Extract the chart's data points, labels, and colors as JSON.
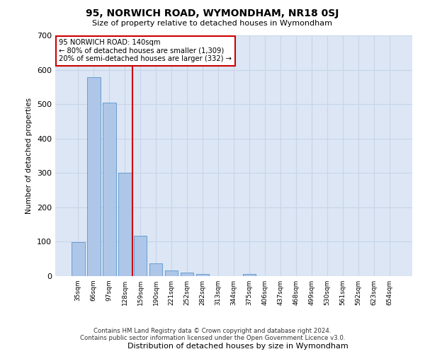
{
  "title": "95, NORWICH ROAD, WYMONDHAM, NR18 0SJ",
  "subtitle": "Size of property relative to detached houses in Wymondham",
  "xlabel": "Distribution of detached houses by size in Wymondham",
  "ylabel": "Number of detached properties",
  "footer_line1": "Contains HM Land Registry data © Crown copyright and database right 2024.",
  "footer_line2": "Contains public sector information licensed under the Open Government Licence v3.0.",
  "categories": [
    "35sqm",
    "66sqm",
    "97sqm",
    "128sqm",
    "159sqm",
    "190sqm",
    "221sqm",
    "252sqm",
    "282sqm",
    "313sqm",
    "344sqm",
    "375sqm",
    "406sqm",
    "437sqm",
    "468sqm",
    "499sqm",
    "530sqm",
    "561sqm",
    "592sqm",
    "623sqm",
    "654sqm"
  ],
  "values": [
    98,
    578,
    505,
    300,
    118,
    38,
    16,
    10,
    7,
    0,
    0,
    6,
    0,
    0,
    0,
    0,
    0,
    0,
    0,
    0,
    0
  ],
  "bar_color": "#aec6e8",
  "bar_edge_color": "#5a96cc",
  "bar_width": 0.85,
  "vline_x": 3.5,
  "vline_color": "#cc0000",
  "annotation_line1": "95 NORWICH ROAD: 140sqm",
  "annotation_line2": "← 80% of detached houses are smaller (1,309)",
  "annotation_line3": "20% of semi-detached houses are larger (332) →",
  "annotation_box_color": "#cc0000",
  "ylim": [
    0,
    700
  ],
  "yticks": [
    0,
    100,
    200,
    300,
    400,
    500,
    600,
    700
  ],
  "grid_color": "#c8d4e8",
  "bg_color": "#dce6f5"
}
